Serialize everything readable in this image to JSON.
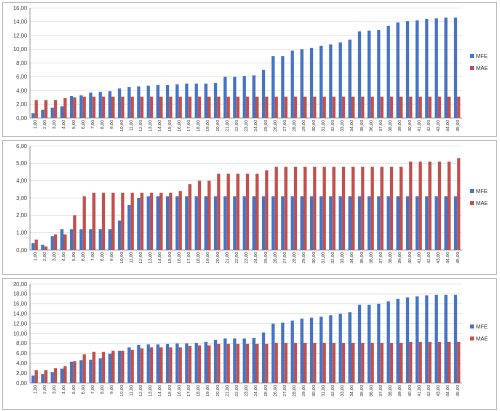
{
  "colors": {
    "MFE": "#4472c4",
    "MAE": "#c0504d"
  },
  "chart_data": [
    {
      "type": "bar",
      "grid": true,
      "legend_position": "right",
      "ylim": [
        0,
        16
      ],
      "yticks": [
        "0,00",
        "2,00",
        "4,00",
        "6,00",
        "8,00",
        "10,00",
        "12,00",
        "14,00",
        "16,00"
      ],
      "categories": [
        "1,00",
        "2,00",
        "3,00",
        "4,00",
        "5,00",
        "6,00",
        "7,00",
        "8,00",
        "9,00",
        "10,00",
        "11,00",
        "12,00",
        "13,00",
        "14,00",
        "15,00",
        "16,00",
        "17,00",
        "18,00",
        "19,00",
        "20,00",
        "21,00",
        "22,00",
        "23,00",
        "24,00",
        "25,00",
        "26,00",
        "27,00",
        "28,00",
        "29,00",
        "30,00",
        "31,00",
        "32,00",
        "33,00",
        "34,00",
        "35,00",
        "36,00",
        "37,00",
        "38,00",
        "39,00",
        "40,00",
        "41,00",
        "42,00",
        "43,00",
        "44,00",
        "45,00"
      ],
      "series": [
        {
          "name": "MFE",
          "values": [
            0.7,
            1.2,
            1.5,
            1.7,
            3.2,
            3.3,
            3.7,
            3.8,
            3.9,
            4.3,
            4.5,
            4.6,
            4.7,
            4.8,
            4.8,
            4.9,
            5.0,
            5.0,
            5.0,
            5.1,
            6.0,
            6.0,
            6.1,
            6.2,
            7.0,
            9.0,
            9.0,
            9.8,
            10.0,
            10.2,
            10.5,
            10.7,
            11.0,
            11.4,
            12.6,
            12.7,
            12.8,
            13.4,
            13.9,
            14.1,
            14.2,
            14.4,
            14.5,
            14.6,
            14.6
          ]
        },
        {
          "name": "MAE",
          "values": [
            2.6,
            2.6,
            2.6,
            2.9,
            3.0,
            3.1,
            3.1,
            3.1,
            3.1,
            3.1,
            3.1,
            3.1,
            3.1,
            3.1,
            3.1,
            3.1,
            3.1,
            3.1,
            3.1,
            3.1,
            3.1,
            3.1,
            3.1,
            3.1,
            3.1,
            3.1,
            3.1,
            3.1,
            3.1,
            3.1,
            3.1,
            3.1,
            3.1,
            3.1,
            3.1,
            3.1,
            3.1,
            3.1,
            3.1,
            3.1,
            3.1,
            3.1,
            3.1,
            3.1,
            3.1
          ]
        }
      ]
    },
    {
      "type": "bar",
      "grid": true,
      "legend_position": "right",
      "ylim": [
        0,
        6
      ],
      "yticks": [
        "0,00",
        "1,00",
        "2,00",
        "3,00",
        "4,00",
        "5,00",
        "6,00"
      ],
      "categories": [
        "1,00",
        "2,00",
        "3,00",
        "4,00",
        "5,00",
        "6,00",
        "7,00",
        "8,00",
        "9,00",
        "10,00",
        "11,00",
        "12,00",
        "13,00",
        "14,00",
        "15,00",
        "16,00",
        "17,00",
        "18,00",
        "19,00",
        "20,00",
        "21,00",
        "22,00",
        "23,00",
        "24,00",
        "25,00",
        "26,00",
        "27,00",
        "28,00",
        "29,00",
        "30,00",
        "31,00",
        "32,00",
        "33,00",
        "34,00",
        "35,00",
        "36,00",
        "37,00",
        "38,00",
        "39,00",
        "40,00",
        "41,00",
        "42,00",
        "43,00",
        "44,00",
        "45,00"
      ],
      "series": [
        {
          "name": "MFE",
          "values": [
            0.4,
            0.3,
            0.8,
            1.2,
            1.2,
            1.2,
            1.2,
            1.2,
            1.2,
            1.7,
            2.6,
            3.0,
            3.1,
            3.1,
            3.1,
            3.1,
            3.1,
            3.1,
            3.1,
            3.1,
            3.1,
            3.1,
            3.1,
            3.1,
            3.1,
            3.1,
            3.1,
            3.1,
            3.1,
            3.1,
            3.1,
            3.1,
            3.1,
            3.1,
            3.1,
            3.1,
            3.1,
            3.1,
            3.1,
            3.1,
            3.1,
            3.1,
            3.1,
            3.1,
            3.1
          ]
        },
        {
          "name": "MAE",
          "values": [
            0.6,
            0.2,
            0.9,
            0.9,
            2.0,
            3.1,
            3.3,
            3.3,
            3.3,
            3.3,
            3.3,
            3.3,
            3.3,
            3.3,
            3.3,
            3.4,
            3.8,
            4.0,
            4.0,
            4.4,
            4.4,
            4.4,
            4.4,
            4.4,
            4.6,
            4.8,
            4.8,
            4.8,
            4.8,
            4.8,
            4.8,
            4.8,
            4.8,
            4.8,
            4.8,
            4.8,
            4.8,
            4.8,
            4.8,
            5.1,
            5.1,
            5.1,
            5.1,
            5.1,
            5.3
          ]
        }
      ]
    },
    {
      "type": "bar",
      "grid": true,
      "legend_position": "right",
      "ylim": [
        0,
        20
      ],
      "yticks": [
        "0,00",
        "2,00",
        "4,00",
        "6,00",
        "8,00",
        "10,00",
        "12,00",
        "14,00",
        "16,00",
        "18,00",
        "20,00"
      ],
      "categories": [
        "1,00",
        "2,00",
        "3,00",
        "4,00",
        "5,00",
        "6,00",
        "7,00",
        "8,00",
        "9,00",
        "10,00",
        "11,00",
        "12,00",
        "13,00",
        "14,00",
        "15,00",
        "16,00",
        "17,00",
        "18,00",
        "19,00",
        "20,00",
        "21,00",
        "22,00",
        "23,00",
        "24,00",
        "25,00",
        "26,00",
        "27,00",
        "28,00",
        "29,00",
        "30,00",
        "31,00",
        "32,00",
        "33,00",
        "34,00",
        "35,00",
        "36,00",
        "37,00",
        "38,00",
        "39,00",
        "40,00",
        "41,00",
        "42,00",
        "43,00",
        "44,00",
        "45,00"
      ],
      "series": [
        {
          "name": "MFE",
          "values": [
            1.5,
            1.8,
            2.2,
            2.9,
            4.3,
            4.6,
            4.7,
            5.0,
            5.9,
            6.5,
            7.2,
            7.7,
            7.8,
            7.8,
            7.9,
            8.0,
            8.0,
            8.1,
            8.3,
            8.7,
            9.0,
            9.0,
            9.0,
            9.1,
            10.2,
            12.0,
            12.2,
            12.6,
            13.0,
            13.2,
            13.4,
            13.7,
            14.0,
            14.3,
            15.8,
            15.8,
            16.0,
            16.5,
            17.0,
            17.3,
            17.5,
            17.7,
            17.8,
            17.8,
            17.8
          ]
        },
        {
          "name": "MAE",
          "values": [
            2.6,
            2.6,
            3.0,
            3.4,
            4.4,
            5.8,
            6.3,
            6.3,
            6.5,
            6.5,
            6.7,
            7.0,
            7.2,
            7.2,
            7.2,
            7.2,
            7.5,
            7.6,
            7.6,
            7.9,
            7.9,
            7.9,
            7.9,
            7.9,
            7.9,
            8.1,
            8.1,
            8.1,
            8.1,
            8.1,
            8.1,
            8.1,
            8.1,
            8.1,
            8.1,
            8.1,
            8.1,
            8.1,
            8.1,
            8.3,
            8.3,
            8.3,
            8.3,
            8.3,
            8.3
          ]
        }
      ]
    }
  ]
}
